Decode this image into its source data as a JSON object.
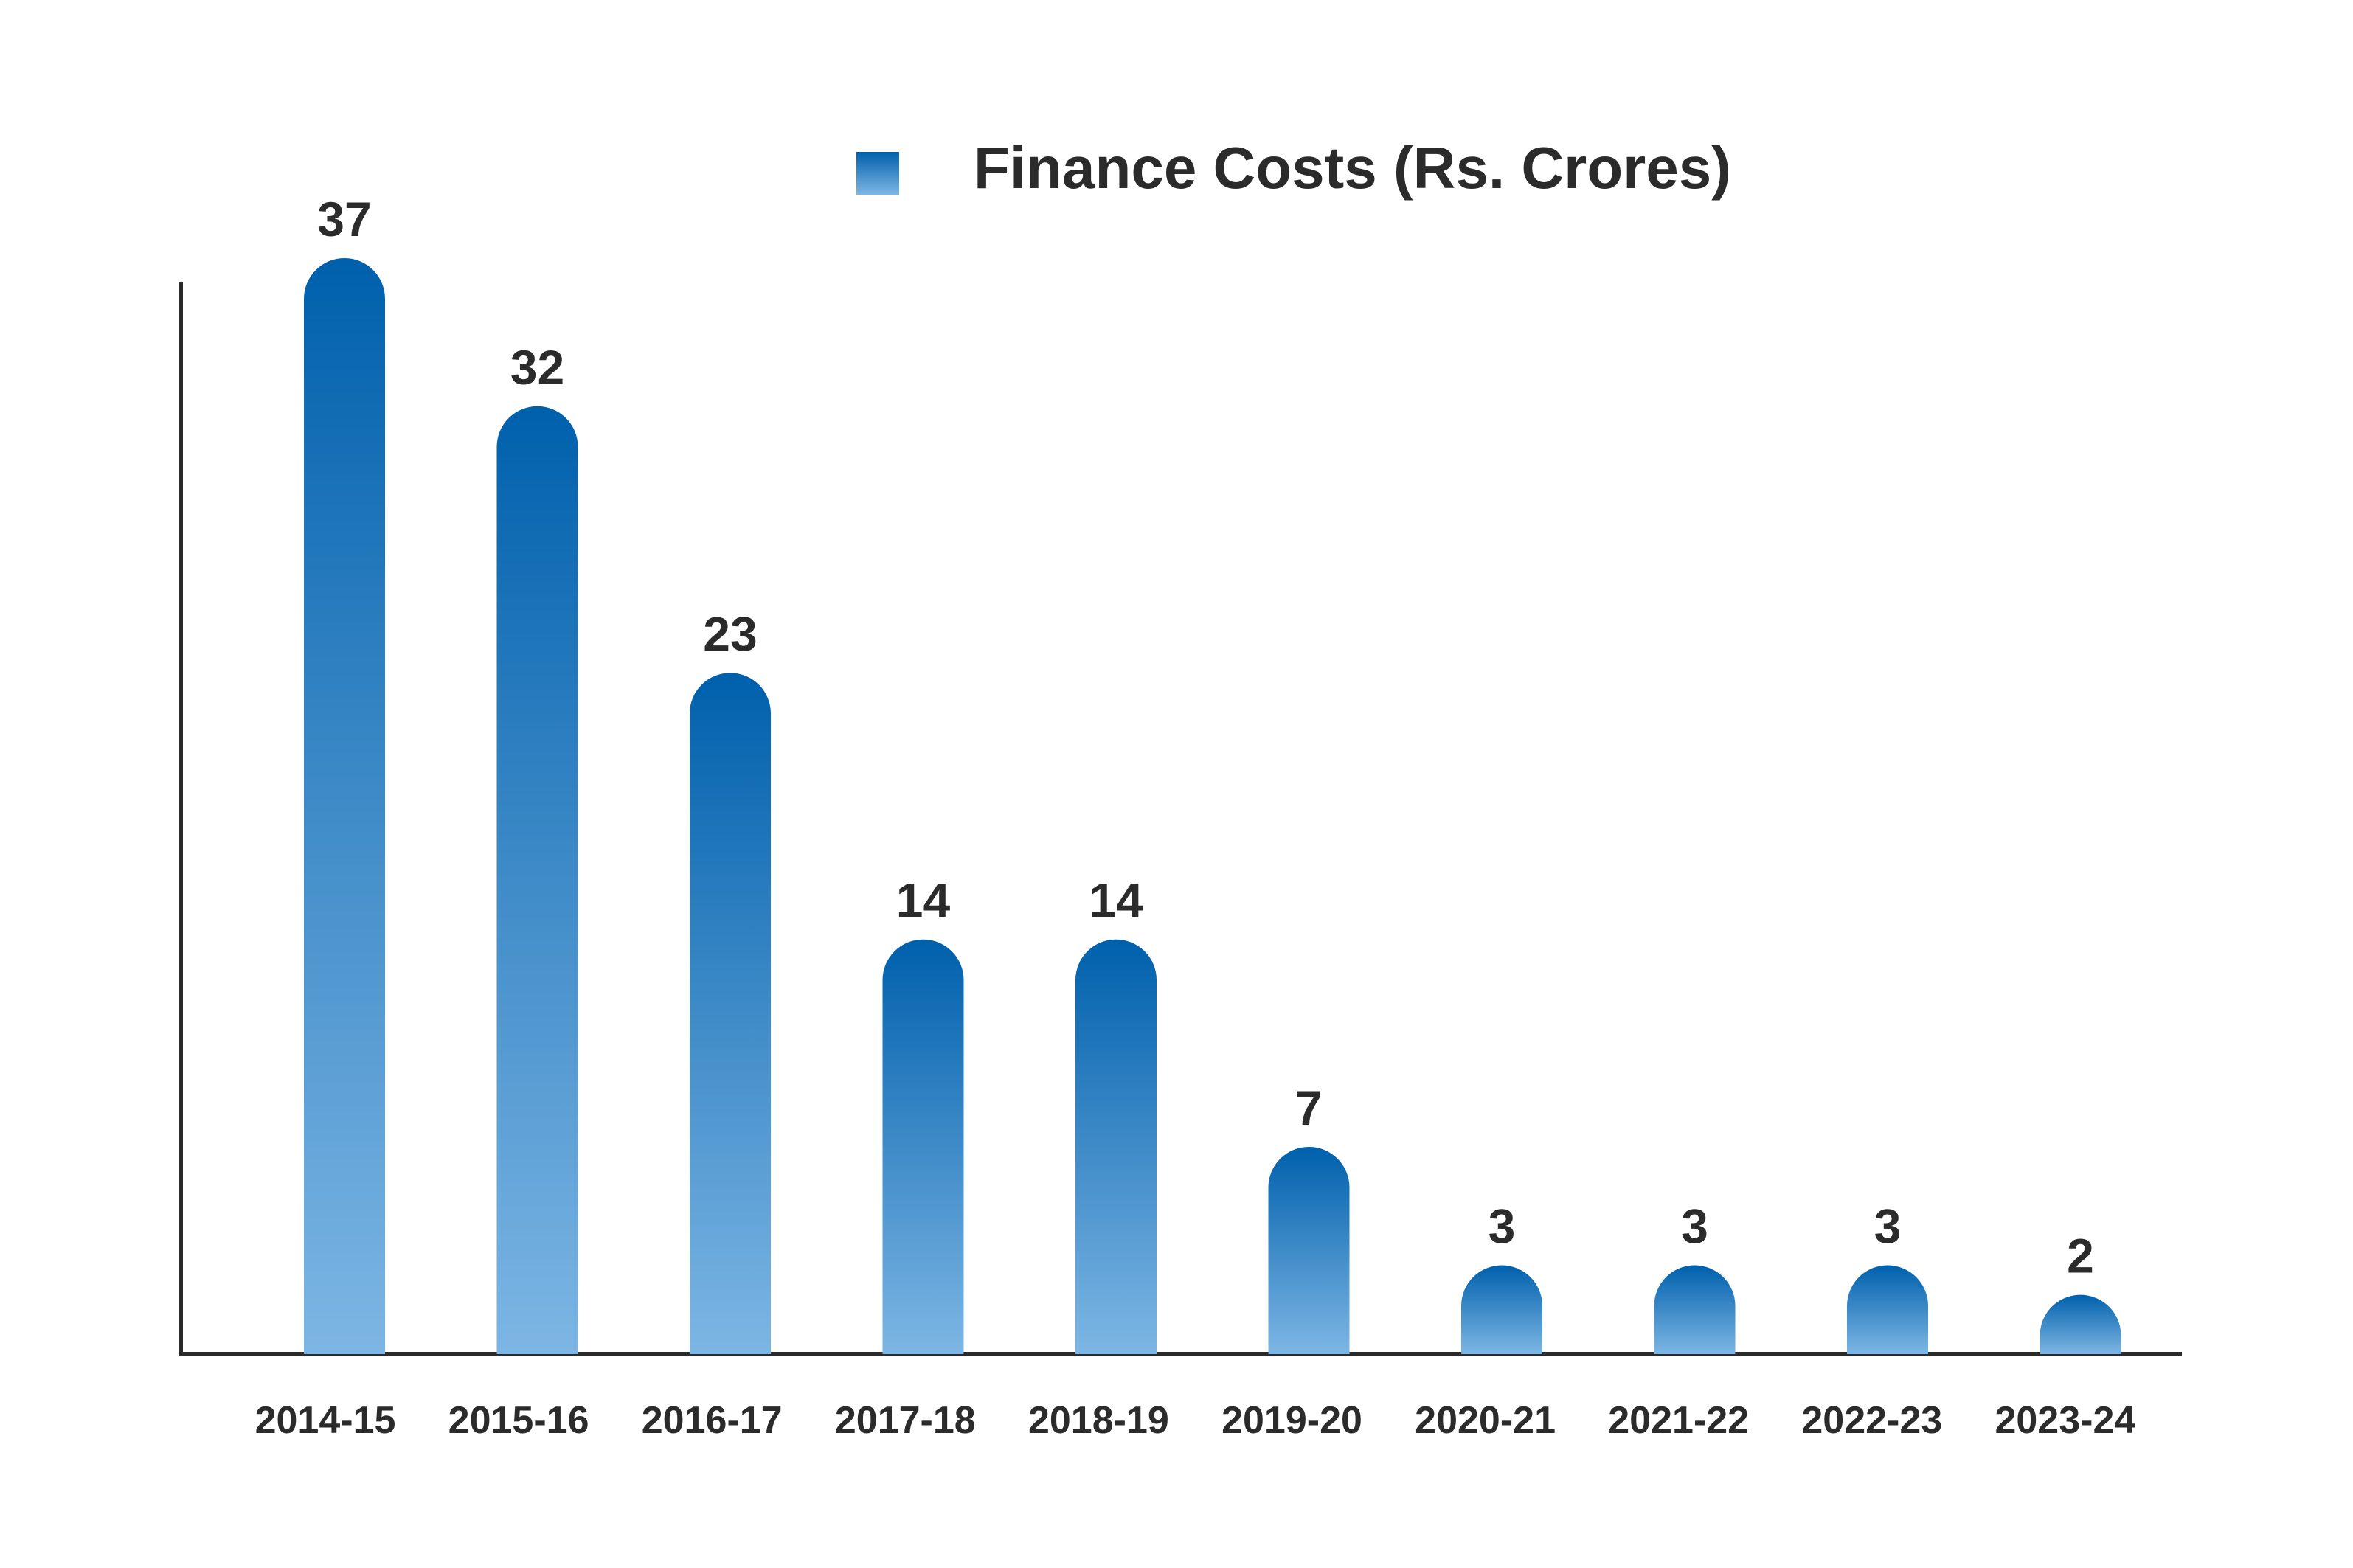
{
  "chart_data": {
    "type": "bar",
    "title": "",
    "xlabel": "",
    "ylabel": "",
    "categories": [
      "2014-15",
      "2015-16",
      "2016-17",
      "2017-18",
      "2018-19",
      "2019-20",
      "2020-21",
      "2021-22",
      "2022-23",
      "2023-24"
    ],
    "series": [
      {
        "name": "Finance Costs (Rs. Crores)",
        "values": [
          37,
          32,
          23,
          14,
          14,
          7,
          3,
          3,
          3,
          2
        ]
      }
    ],
    "data_labels": [
      "37",
      "32",
      "23",
      "14",
      "14",
      "7",
      "3",
      "3",
      "3",
      "2"
    ],
    "ylim": [
      0,
      37
    ],
    "grid": false,
    "legend_position": "top-center",
    "colors": {
      "bar_top": "#0060ac",
      "bar_bottom": "#7db6e4",
      "axis": "#2b2b2b",
      "text": "#2b2b2b"
    }
  }
}
